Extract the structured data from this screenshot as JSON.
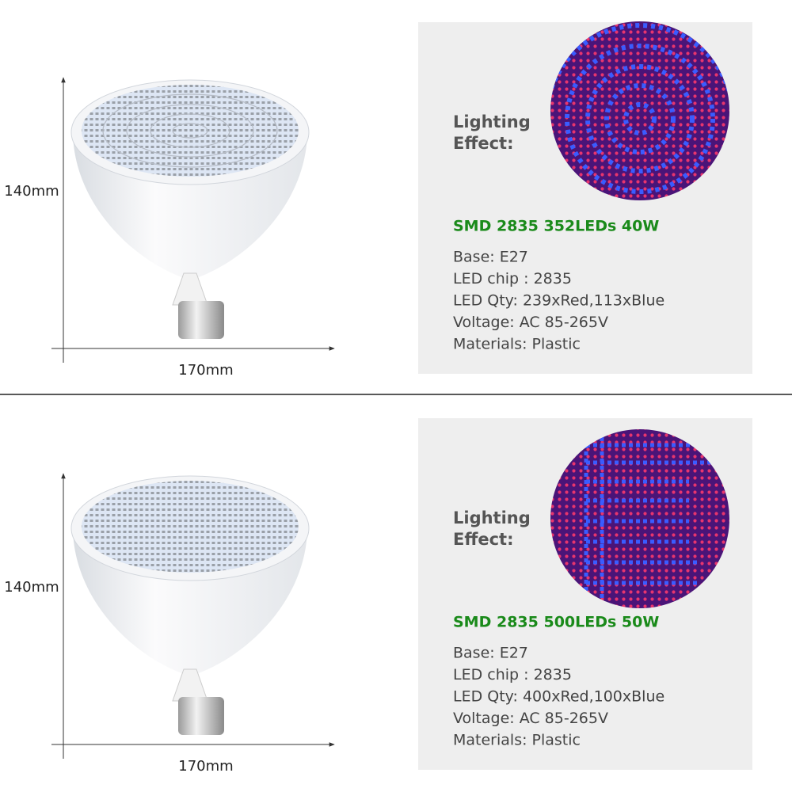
{
  "products": [
    {
      "height_label": "140mm",
      "width_label": "170mm",
      "effect_label": [
        "Lighting",
        "Effect:"
      ],
      "title": "SMD 2835 352LEDs 40W",
      "specs": [
        "Base: E27",
        "LED chip :  2835",
        "LED Qty: 239xRed,113xBlue",
        "Voltage: AC 85-265V",
        "Materials: Plastic"
      ]
    },
    {
      "height_label": "140mm",
      "width_label": "170mm",
      "effect_label": [
        "Lighting",
        "Effect:"
      ],
      "title": "SMD 2835 500LEDs 50W",
      "specs": [
        "Base: E27",
        "LED chip :  2835",
        "LED Qty: 400xRed,100xBlue",
        "Voltage: AC 85-265V",
        "Materials: Plastic"
      ]
    }
  ]
}
